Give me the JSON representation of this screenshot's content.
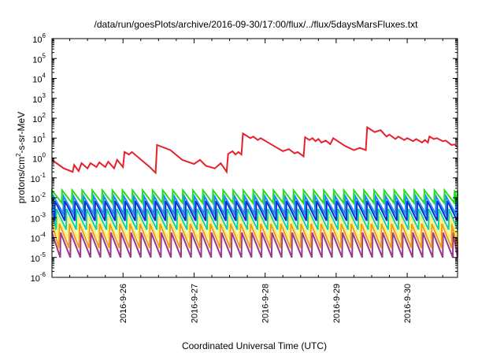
{
  "chart_data": {
    "type": "line",
    "title": "/data/run/goesPlots/archive/2016-09-30/17:00/flux/../flux/5daysMarsFluxes.txt",
    "xlabel": "Coordinated Universal Time (UTC)",
    "ylabel_prefix": "protons/cm",
    "ylabel_sup": "2",
    "ylabel_suffix": "-s-sr-MeV",
    "yscale": "log",
    "ylim": [
      1e-06,
      1000000.0
    ],
    "xlim": [
      "2016-09-25T00:00",
      "2016-09-30T17:00"
    ],
    "grid": false,
    "legend": "none",
    "x_ticks": [
      "2016-9-26",
      "2016-9-27",
      "2016-9-28",
      "2016-9-29",
      "2016-9-30"
    ],
    "y_ticks": [
      {
        "base": "10",
        "exp": "-6"
      },
      {
        "base": "10",
        "exp": "-5"
      },
      {
        "base": "10",
        "exp": "-4"
      },
      {
        "base": "10",
        "exp": "-3"
      },
      {
        "base": "10",
        "exp": "-2"
      },
      {
        "base": "10",
        "exp": "-1"
      },
      {
        "base": "10",
        "exp": "0"
      },
      {
        "base": "10",
        "exp": "1"
      },
      {
        "base": "10",
        "exp": "2"
      },
      {
        "base": "10",
        "exp": "3"
      },
      {
        "base": "10",
        "exp": "4"
      },
      {
        "base": "10",
        "exp": "5"
      },
      {
        "base": "10",
        "exp": "6"
      }
    ],
    "series": [
      {
        "color": "#e8202a",
        "points": [
          [
            "2016-09-25T00:00",
            0.8
          ],
          [
            "2016-09-25T04:00",
            0.3
          ],
          [
            "2016-09-25T07:00",
            0.2
          ],
          [
            "2016-09-25T07:30",
            0.45
          ],
          [
            "2016-09-25T09:00",
            0.22
          ],
          [
            "2016-09-25T10:00",
            0.55
          ],
          [
            "2016-09-25T12:00",
            0.3
          ],
          [
            "2016-09-25T13:00",
            0.55
          ],
          [
            "2016-09-25T15:00",
            0.35
          ],
          [
            "2016-09-25T16:00",
            0.6
          ],
          [
            "2016-09-25T18:00",
            0.35
          ],
          [
            "2016-09-25T19:00",
            0.65
          ],
          [
            "2016-09-25T21:00",
            0.3
          ],
          [
            "2016-09-25T22:00",
            0.8
          ],
          [
            "2016-09-26T00:00",
            0.35
          ],
          [
            "2016-09-26T00:30",
            2.0
          ],
          [
            "2016-09-26T02:00",
            1.5
          ],
          [
            "2016-09-26T03:00",
            2.0
          ],
          [
            "2016-09-26T09:00",
            0.35
          ],
          [
            "2016-09-26T11:00",
            0.18
          ],
          [
            "2016-09-26T11:30",
            4.5
          ],
          [
            "2016-09-26T16:00",
            2.5
          ],
          [
            "2016-09-26T20:00",
            0.8
          ],
          [
            "2016-09-27T00:00",
            0.5
          ],
          [
            "2016-09-27T02:00",
            0.8
          ],
          [
            "2016-09-27T04:00",
            0.4
          ],
          [
            "2016-09-27T07:00",
            0.3
          ],
          [
            "2016-09-27T09:00",
            0.55
          ],
          [
            "2016-09-27T11:00",
            0.2
          ],
          [
            "2016-09-27T11:30",
            1.6
          ],
          [
            "2016-09-27T13:00",
            2.2
          ],
          [
            "2016-09-27T14:00",
            1.5
          ],
          [
            "2016-09-27T15:00",
            2.0
          ],
          [
            "2016-09-27T16:00",
            1.5
          ],
          [
            "2016-09-27T16:30",
            17
          ],
          [
            "2016-09-27T19:00",
            10
          ],
          [
            "2016-09-27T20:00",
            12
          ],
          [
            "2016-09-27T21:30",
            8
          ],
          [
            "2016-09-27T22:30",
            10
          ],
          [
            "2016-09-28T03:00",
            4
          ],
          [
            "2016-09-28T06:00",
            2.2
          ],
          [
            "2016-09-28T08:00",
            2.8
          ],
          [
            "2016-09-28T10:00",
            1.7
          ],
          [
            "2016-09-28T11:00",
            2.0
          ],
          [
            "2016-09-28T13:00",
            1.2
          ],
          [
            "2016-09-28T13:30",
            11
          ],
          [
            "2016-09-28T15:00",
            8
          ],
          [
            "2016-09-28T16:00",
            10
          ],
          [
            "2016-09-28T17:00",
            7
          ],
          [
            "2016-09-28T18:00",
            9
          ],
          [
            "2016-09-28T19:00",
            6
          ],
          [
            "2016-09-28T20:30",
            7.5
          ],
          [
            "2016-09-28T22:00",
            5
          ],
          [
            "2016-09-28T23:00",
            10
          ],
          [
            "2016-09-29T03:00",
            4
          ],
          [
            "2016-09-29T06:00",
            2.5
          ],
          [
            "2016-09-29T08:00",
            3.2
          ],
          [
            "2016-09-29T10:00",
            2.5
          ],
          [
            "2016-09-29T10:30",
            35
          ],
          [
            "2016-09-29T13:00",
            20
          ],
          [
            "2016-09-29T15:00",
            25
          ],
          [
            "2016-09-29T17:00",
            12
          ],
          [
            "2016-09-29T18:00",
            15
          ],
          [
            "2016-09-29T20:00",
            9
          ],
          [
            "2016-09-29T21:00",
            12
          ],
          [
            "2016-09-29T23:00",
            8
          ],
          [
            "2016-09-30T00:00",
            10
          ],
          [
            "2016-09-30T02:00",
            7
          ],
          [
            "2016-09-30T03:00",
            9
          ],
          [
            "2016-09-30T05:00",
            6
          ],
          [
            "2016-09-30T06:00",
            8
          ],
          [
            "2016-09-30T07:00",
            6
          ],
          [
            "2016-09-30T07:30",
            12
          ],
          [
            "2016-09-30T09:00",
            9
          ],
          [
            "2016-09-30T10:00",
            10
          ],
          [
            "2016-09-30T12:00",
            7
          ],
          [
            "2016-09-30T13:00",
            7.5
          ],
          [
            "2016-09-30T15:00",
            4.5
          ],
          [
            "2016-09-30T16:00",
            4.8
          ],
          [
            "2016-09-30T17:00",
            3.5
          ]
        ]
      },
      {
        "color": "#22e022",
        "sawtooth": {
          "start": "2016-09-25T00:00",
          "period_hours": 3.4,
          "phase_hours": 0.0,
          "count": 50,
          "low": 0.0055,
          "high": 0.024
        }
      },
      {
        "color": "#1d8cf0",
        "sawtooth": {
          "start": "2016-09-25T00:00",
          "period_hours": 3.4,
          "phase_hours": 0.5,
          "count": 50,
          "low": 0.0016,
          "high": 0.012
        }
      },
      {
        "color": "#0b2ccf",
        "sawtooth": {
          "start": "2016-09-25T00:00",
          "period_hours": 3.4,
          "phase_hours": 1.0,
          "count": 50,
          "low": 0.0007,
          "high": 0.007
        }
      },
      {
        "color": "#10d0a8",
        "sawtooth": {
          "start": "2016-09-25T00:00",
          "period_hours": 3.4,
          "phase_hours": 1.5,
          "count": 50,
          "low": 0.00025,
          "high": 0.0028
        }
      },
      {
        "color": "#f8f36a",
        "sawtooth": {
          "start": "2016-09-25T00:00",
          "period_hours": 3.4,
          "phase_hours": 2.0,
          "count": 50,
          "low": 9e-05,
          "high": 0.0012
        }
      },
      {
        "color": "#f39a1e",
        "sawtooth": {
          "start": "2016-09-25T00:00",
          "period_hours": 3.4,
          "phase_hours": 2.5,
          "count": 50,
          "low": 3e-05,
          "high": 0.0005
        }
      },
      {
        "color": "#98398c",
        "sawtooth": {
          "start": "2016-09-25T00:00",
          "period_hours": 3.4,
          "phase_hours": 2.9,
          "count": 50,
          "low": 1e-05,
          "high": 0.00018
        }
      }
    ]
  }
}
